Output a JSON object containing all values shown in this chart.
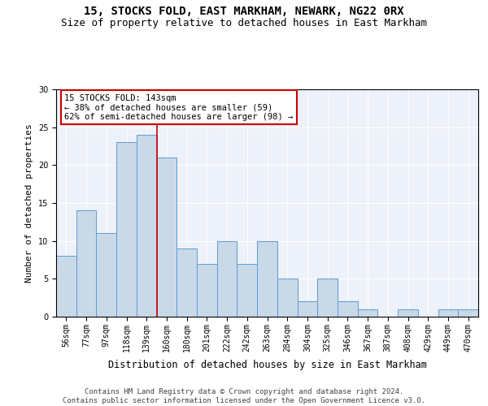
{
  "title": "15, STOCKS FOLD, EAST MARKHAM, NEWARK, NG22 0RX",
  "subtitle": "Size of property relative to detached houses in East Markham",
  "xlabel": "Distribution of detached houses by size in East Markham",
  "ylabel": "Number of detached properties",
  "categories": [
    "56sqm",
    "77sqm",
    "97sqm",
    "118sqm",
    "139sqm",
    "160sqm",
    "180sqm",
    "201sqm",
    "222sqm",
    "242sqm",
    "263sqm",
    "284sqm",
    "304sqm",
    "325sqm",
    "346sqm",
    "367sqm",
    "387sqm",
    "408sqm",
    "429sqm",
    "449sqm",
    "470sqm"
  ],
  "values": [
    8,
    14,
    11,
    23,
    24,
    21,
    9,
    7,
    10,
    7,
    10,
    5,
    2,
    5,
    2,
    1,
    0,
    1,
    0,
    1,
    1
  ],
  "bar_color": "#c9d9e8",
  "bar_edge_color": "#5b9bd5",
  "annotation_text": "15 STOCKS FOLD: 143sqm\n← 38% of detached houses are smaller (59)\n62% of semi-detached houses are larger (98) →",
  "annotation_box_color": "#ffffff",
  "annotation_box_edge_color": "#cc0000",
  "vline_color": "#cc0000",
  "vline_x": 4.5,
  "ylim": [
    0,
    30
  ],
  "yticks": [
    0,
    5,
    10,
    15,
    20,
    25,
    30
  ],
  "background_color": "#edf1f9",
  "footer_text": "Contains HM Land Registry data © Crown copyright and database right 2024.\nContains public sector information licensed under the Open Government Licence v3.0.",
  "title_fontsize": 10,
  "subtitle_fontsize": 9,
  "xlabel_fontsize": 8.5,
  "ylabel_fontsize": 8,
  "tick_fontsize": 7,
  "annotation_fontsize": 7.5,
  "footer_fontsize": 6.5
}
